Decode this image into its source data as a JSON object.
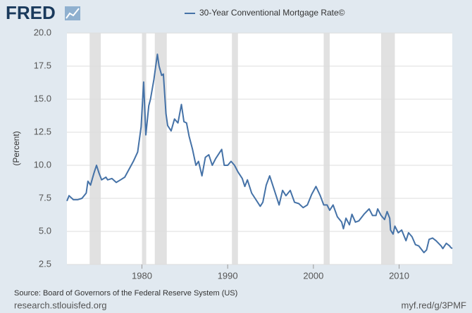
{
  "logo": "FRED",
  "chart_data": {
    "type": "line",
    "series": [
      {
        "name": "30-Year Conventional Mortgage Rate©",
        "color": "#4572a7",
        "values": [
          7.3,
          7.7,
          7.4,
          7.4,
          7.5,
          7.9,
          8.8,
          8.5,
          9.4,
          10.0,
          9.4,
          8.9,
          9.1,
          8.9,
          9.0,
          8.7,
          8.9,
          9.1,
          9.7,
          10.3,
          11.0,
          12.9,
          16.3,
          12.3,
          14.5,
          15.0,
          16.5,
          18.4,
          17.5,
          16.8,
          16.9,
          13.9,
          13.0,
          12.6,
          13.5,
          13.2,
          14.6,
          13.3,
          13.2,
          12.2,
          11.2,
          10.0,
          10.3,
          9.2,
          10.6,
          10.8,
          10.0,
          10.5,
          10.9,
          11.2,
          10.0,
          10.0,
          10.3,
          10.0,
          9.5,
          9.0,
          8.4,
          8.9,
          7.9,
          7.5,
          6.9,
          7.2,
          8.5,
          9.2,
          8.4,
          7.4,
          7.0,
          8.1,
          7.7,
          8.1,
          7.2,
          7.1,
          6.8,
          7.0,
          7.8,
          8.4,
          7.7,
          7.0,
          7.0,
          6.6,
          7.0,
          6.1,
          5.7,
          5.2,
          6.0,
          5.5,
          6.3,
          5.7,
          5.8,
          6.3,
          6.7,
          6.2,
          6.2,
          6.7,
          6.2,
          5.9,
          6.5,
          6.0,
          5.1,
          4.8,
          5.4,
          4.9,
          5.1,
          4.3,
          4.9,
          4.6,
          4.0,
          3.9,
          3.4,
          3.6,
          4.4,
          4.5,
          4.3,
          3.9,
          3.7,
          4.1,
          3.9,
          3.8,
          3.7
        ]
      }
    ],
    "x": [
      1971.25,
      1971.5,
      1972.0,
      1972.5,
      1973.0,
      1973.5,
      1973.7,
      1974.0,
      1974.4,
      1974.7,
      1975.0,
      1975.3,
      1975.8,
      1976.0,
      1976.5,
      1977.0,
      1977.5,
      1978.0,
      1978.5,
      1979.0,
      1979.5,
      1979.9,
      1980.2,
      1980.45,
      1980.8,
      1981.0,
      1981.4,
      1981.8,
      1982.0,
      1982.3,
      1982.5,
      1982.8,
      1983.0,
      1983.4,
      1983.8,
      1984.2,
      1984.6,
      1984.9,
      1985.2,
      1985.5,
      1985.9,
      1986.3,
      1986.6,
      1987.0,
      1987.4,
      1987.8,
      1988.2,
      1988.6,
      1989.0,
      1989.3,
      1989.6,
      1990.0,
      1990.4,
      1990.8,
      1991.2,
      1991.7,
      1992.0,
      1992.3,
      1992.8,
      1993.2,
      1993.8,
      1994.1,
      1994.5,
      1994.9,
      1995.3,
      1995.8,
      1996.0,
      1996.4,
      1996.8,
      1997.3,
      1997.8,
      1998.3,
      1998.8,
      1999.3,
      1999.8,
      2000.3,
      2000.8,
      2001.2,
      2001.6,
      2001.9,
      2002.3,
      2002.8,
      2003.3,
      2003.5,
      2003.8,
      2004.2,
      2004.5,
      2004.9,
      2005.3,
      2005.9,
      2006.5,
      2006.9,
      2007.3,
      2007.5,
      2007.9,
      2008.3,
      2008.6,
      2008.9,
      2009.0,
      2009.3,
      2009.5,
      2009.9,
      2010.3,
      2010.8,
      2011.1,
      2011.5,
      2011.9,
      2012.3,
      2012.9,
      2013.2,
      2013.5,
      2013.9,
      2014.3,
      2014.9,
      2015.1,
      2015.5,
      2015.9,
      2016.0,
      2016.2
    ],
    "shaded_periods": [
      [
        1973.9,
        1975.2
      ],
      [
        1980.0,
        1980.5
      ],
      [
        1981.5,
        1982.9
      ],
      [
        1990.5,
        1991.2
      ],
      [
        2001.2,
        2001.9
      ],
      [
        2007.9,
        2009.5
      ]
    ],
    "shade_color": "#e1e1e1",
    "xlim": [
      1971.25,
      2016.2
    ],
    "xticks": [
      1980,
      1990,
      2000,
      2010
    ],
    "ylim": [
      2.5,
      20.0
    ],
    "yticks": [
      2.5,
      {
        "value": 5.0,
        "label": "5.0"
      },
      7.5,
      {
        "value": 10.0,
        "label": "10.0"
      },
      12.5,
      {
        "value": 15.0,
        "label": "15.0"
      },
      17.5,
      {
        "value": 20.0,
        "label": "20.0"
      }
    ],
    "y_label": "(Percent)",
    "grid": true,
    "source": "Source: Board of Governors of the Federal Reserve System (US)",
    "footer_left": "research.stlouisfed.org",
    "footer_right": "myf.red/g/3PMF"
  }
}
